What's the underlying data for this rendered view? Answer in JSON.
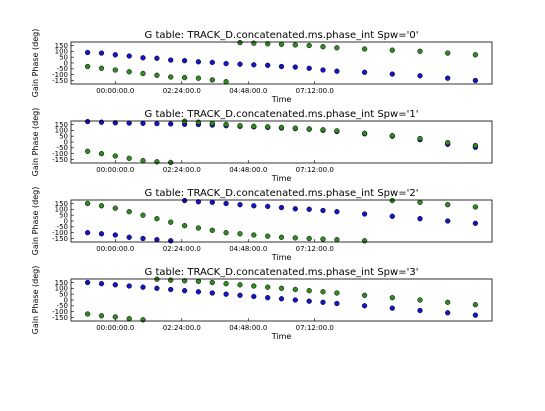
{
  "colors": {
    "blue": "#1414c8",
    "green": "#2f8a22",
    "edge": "#000000"
  },
  "chart_data": [
    {
      "type": "scatter",
      "title": "G table: TRACK_D.concatenated.ms.phase_int      Spw='0'",
      "xlabel": "Time",
      "ylabel": "Gain Phase (deg)",
      "xlim": [
        -1.6,
        13.6
      ],
      "ylim": [
        -180,
        180
      ],
      "yticks": [
        150,
        100,
        50,
        0,
        -50,
        -100,
        -150
      ],
      "xticks": [
        {
          "value": 0,
          "label": "00:00:00.0"
        },
        {
          "value": 2.4,
          "label": "02:24:00.0"
        },
        {
          "value": 4.8,
          "label": "04:48:00.0"
        },
        {
          "value": 7.2,
          "label": "07:12:00.0"
        }
      ],
      "show_xlabel": true,
      "series": [
        {
          "color": "blue",
          "points": [
            [
              -1.0,
              90
            ],
            [
              -0.5,
              85
            ],
            [
              0.0,
              70
            ],
            [
              0.5,
              60
            ],
            [
              1.0,
              45
            ],
            [
              1.5,
              40
            ],
            [
              2.0,
              25
            ],
            [
              2.5,
              20
            ],
            [
              3.0,
              10
            ],
            [
              3.5,
              5
            ],
            [
              4.0,
              -5
            ],
            [
              4.5,
              -10
            ],
            [
              5.0,
              -15
            ],
            [
              5.5,
              -20
            ],
            [
              6.0,
              -30
            ],
            [
              6.5,
              -35
            ],
            [
              7.0,
              -45
            ],
            [
              7.5,
              -60
            ],
            [
              8.0,
              -70
            ],
            [
              9.0,
              -80
            ],
            [
              10.0,
              -95
            ],
            [
              11.0,
              -110
            ],
            [
              12.0,
              -130
            ],
            [
              13.0,
              -150
            ]
          ]
        },
        {
          "color": "green",
          "points": [
            [
              -1.0,
              -30
            ],
            [
              -0.5,
              -45
            ],
            [
              0.0,
              -60
            ],
            [
              0.5,
              -75
            ],
            [
              1.0,
              -90
            ],
            [
              1.5,
              -105
            ],
            [
              2.0,
              -120
            ],
            [
              2.5,
              -125
            ],
            [
              3.0,
              -130
            ],
            [
              3.5,
              -145
            ],
            [
              4.0,
              -160
            ],
            [
              4.5,
              175
            ],
            [
              5.0,
              170
            ],
            [
              5.5,
              165
            ],
            [
              6.0,
              160
            ],
            [
              6.5,
              155
            ],
            [
              7.0,
              150
            ],
            [
              7.5,
              140
            ],
            [
              8.0,
              130
            ],
            [
              9.0,
              120
            ],
            [
              10.0,
              110
            ],
            [
              11.0,
              100
            ],
            [
              12.0,
              85
            ],
            [
              13.0,
              70
            ]
          ]
        }
      ]
    },
    {
      "type": "scatter",
      "title": "G table: TRACK_D.concatenated.ms.phase_int      Spw='1'",
      "xlabel": "Time",
      "ylabel": "Gain Phase (deg)",
      "xlim": [
        -1.6,
        13.6
      ],
      "ylim": [
        -180,
        180
      ],
      "yticks": [
        150,
        100,
        50,
        0,
        -50,
        -100,
        -150
      ],
      "xticks": [
        {
          "value": 0,
          "label": "00:00:00.0"
        },
        {
          "value": 2.4,
          "label": "02:24:00.0"
        },
        {
          "value": 4.8,
          "label": "04:48:00.0"
        },
        {
          "value": 7.2,
          "label": "07:12:00.0"
        }
      ],
      "show_xlabel": true,
      "series": [
        {
          "color": "blue",
          "points": [
            [
              -1.0,
              175
            ],
            [
              -0.5,
              170
            ],
            [
              0.0,
              165
            ],
            [
              0.5,
              162
            ],
            [
              1.0,
              160
            ],
            [
              1.5,
              158
            ],
            [
              2.0,
              155
            ],
            [
              2.5,
              152
            ],
            [
              3.0,
              150
            ],
            [
              3.5,
              145
            ],
            [
              4.0,
              140
            ],
            [
              4.5,
              135
            ],
            [
              5.0,
              130
            ],
            [
              5.5,
              125
            ],
            [
              6.0,
              120
            ],
            [
              6.5,
              115
            ],
            [
              7.0,
              110
            ],
            [
              7.5,
              100
            ],
            [
              8.0,
              90
            ],
            [
              9.0,
              70
            ],
            [
              10.0,
              50
            ],
            [
              11.0,
              20
            ],
            [
              12.0,
              -20
            ],
            [
              13.0,
              -45
            ]
          ]
        },
        {
          "color": "green",
          "points": [
            [
              -1.0,
              -80
            ],
            [
              -0.5,
              -100
            ],
            [
              0.0,
              -120
            ],
            [
              0.5,
              -140
            ],
            [
              1.0,
              -160
            ],
            [
              1.5,
              -170
            ],
            [
              2.0,
              -175
            ],
            [
              2.5,
              178
            ],
            [
              3.0,
              170
            ],
            [
              3.5,
              160
            ],
            [
              4.0,
              150
            ],
            [
              4.5,
              140
            ],
            [
              5.0,
              135
            ],
            [
              5.5,
              130
            ],
            [
              6.0,
              125
            ],
            [
              6.5,
              118
            ],
            [
              7.0,
              112
            ],
            [
              7.5,
              105
            ],
            [
              8.0,
              95
            ],
            [
              9.0,
              75
            ],
            [
              10.0,
              55
            ],
            [
              11.0,
              30
            ],
            [
              12.0,
              -5
            ],
            [
              13.0,
              -30
            ]
          ]
        }
      ]
    },
    {
      "type": "scatter",
      "title": "G table: TRACK_D.concatenated.ms.phase_int      Spw='2'",
      "xlabel": "Time",
      "ylabel": "Gain Phase (deg)",
      "xlim": [
        -1.6,
        13.6
      ],
      "ylim": [
        -180,
        180
      ],
      "yticks": [
        150,
        100,
        50,
        0,
        -50,
        -100,
        -150
      ],
      "xticks": [
        {
          "value": 0,
          "label": "00:00:00.0"
        },
        {
          "value": 2.4,
          "label": "02:24:00.0"
        },
        {
          "value": 4.8,
          "label": "04:48:00.0"
        },
        {
          "value": 7.2,
          "label": "07:12:00.0"
        }
      ],
      "show_xlabel": true,
      "series": [
        {
          "color": "blue",
          "points": [
            [
              -1.0,
              -100
            ],
            [
              -0.5,
              -110
            ],
            [
              0.0,
              -120
            ],
            [
              0.5,
              -140
            ],
            [
              1.0,
              -150
            ],
            [
              1.5,
              -160
            ],
            [
              2.0,
              -170
            ],
            [
              2.5,
              175
            ],
            [
              3.0,
              165
            ],
            [
              3.5,
              160
            ],
            [
              4.0,
              150
            ],
            [
              4.5,
              140
            ],
            [
              5.0,
              130
            ],
            [
              5.5,
              125
            ],
            [
              6.0,
              115
            ],
            [
              6.5,
              105
            ],
            [
              7.0,
              100
            ],
            [
              7.5,
              90
            ],
            [
              8.0,
              80
            ],
            [
              9.0,
              60
            ],
            [
              10.0,
              40
            ],
            [
              11.0,
              20
            ],
            [
              12.0,
              0
            ],
            [
              13.0,
              -20
            ]
          ]
        },
        {
          "color": "green",
          "points": [
            [
              -1.0,
              150
            ],
            [
              -0.5,
              130
            ],
            [
              0.0,
              110
            ],
            [
              0.5,
              80
            ],
            [
              1.0,
              50
            ],
            [
              1.5,
              20
            ],
            [
              2.0,
              -10
            ],
            [
              2.5,
              -40
            ],
            [
              3.0,
              -60
            ],
            [
              3.5,
              -80
            ],
            [
              4.0,
              -100
            ],
            [
              4.5,
              -110
            ],
            [
              5.0,
              -120
            ],
            [
              5.5,
              -130
            ],
            [
              6.0,
              -140
            ],
            [
              6.5,
              -145
            ],
            [
              7.0,
              -150
            ],
            [
              7.5,
              -155
            ],
            [
              8.0,
              -160
            ],
            [
              9.0,
              -170
            ],
            [
              10.0,
              175
            ],
            [
              11.0,
              160
            ],
            [
              12.0,
              140
            ],
            [
              13.0,
              120
            ]
          ]
        }
      ]
    },
    {
      "type": "scatter",
      "title": "G table: TRACK_D.concatenated.ms.phase_int      Spw='3'",
      "xlabel": "Time",
      "ylabel": "Gain Phase (deg)",
      "xlim": [
        -1.6,
        13.6
      ],
      "ylim": [
        -180,
        180
      ],
      "yticks": [
        150,
        100,
        50,
        0,
        -50,
        -100,
        -150
      ],
      "xticks": [
        {
          "value": 0,
          "label": "00:00:00.0"
        },
        {
          "value": 2.4,
          "label": "02:24:00.0"
        },
        {
          "value": 4.8,
          "label": "04:48:00.0"
        },
        {
          "value": 7.2,
          "label": "07:12:00.0"
        }
      ],
      "show_xlabel": true,
      "series": [
        {
          "color": "blue",
          "points": [
            [
              -1.0,
              150
            ],
            [
              -0.5,
              140
            ],
            [
              0.0,
              130
            ],
            [
              0.5,
              120
            ],
            [
              1.0,
              110
            ],
            [
              1.5,
              100
            ],
            [
              2.0,
              90
            ],
            [
              2.5,
              80
            ],
            [
              3.0,
              70
            ],
            [
              3.5,
              60
            ],
            [
              4.0,
              50
            ],
            [
              4.5,
              40
            ],
            [
              5.0,
              30
            ],
            [
              5.5,
              20
            ],
            [
              6.0,
              10
            ],
            [
              6.5,
              0
            ],
            [
              7.0,
              -10
            ],
            [
              7.5,
              -20
            ],
            [
              8.0,
              -30
            ],
            [
              9.0,
              -50
            ],
            [
              10.0,
              -70
            ],
            [
              11.0,
              -90
            ],
            [
              12.0,
              -110
            ],
            [
              13.0,
              -130
            ]
          ]
        },
        {
          "color": "green",
          "points": [
            [
              -1.0,
              -120
            ],
            [
              -0.5,
              -135
            ],
            [
              0.0,
              -145
            ],
            [
              0.5,
              -160
            ],
            [
              1.0,
              -170
            ],
            [
              1.5,
              178
            ],
            [
              2.0,
              170
            ],
            [
              2.5,
              165
            ],
            [
              3.0,
              160
            ],
            [
              3.5,
              150
            ],
            [
              4.0,
              140
            ],
            [
              4.5,
              130
            ],
            [
              5.0,
              120
            ],
            [
              5.5,
              110
            ],
            [
              6.0,
              100
            ],
            [
              6.5,
              90
            ],
            [
              7.0,
              80
            ],
            [
              7.5,
              70
            ],
            [
              8.0,
              60
            ],
            [
              9.0,
              40
            ],
            [
              10.0,
              20
            ],
            [
              11.0,
              0
            ],
            [
              12.0,
              -20
            ],
            [
              13.0,
              -40
            ]
          ]
        }
      ]
    }
  ]
}
